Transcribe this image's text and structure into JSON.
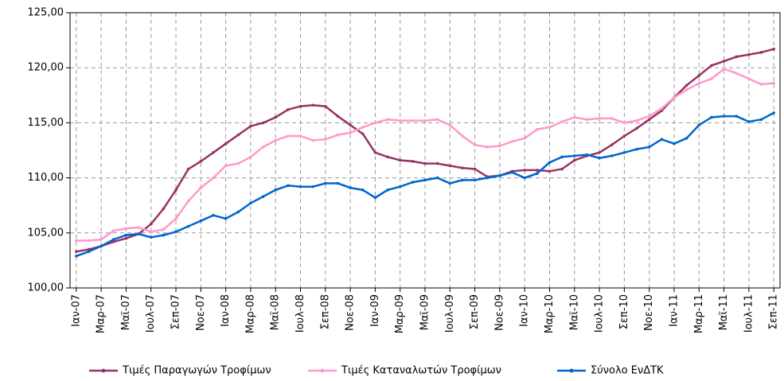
{
  "chart_data": {
    "type": "line",
    "categories": [
      "Ιαν-07",
      null,
      "Μαρ-07",
      null,
      "Μαϊ-07",
      null,
      "Ιουλ-07",
      null,
      "Σεπ-07",
      null,
      "Νοε-07",
      null,
      "Ιαν-08",
      null,
      "Μαρ-08",
      null,
      "Μαϊ-08",
      null,
      "Ιουλ-08",
      null,
      "Σεπ-08",
      null,
      "Νοε-08",
      null,
      "Ιαν-09",
      null,
      "Μαρ-09",
      null,
      "Μαϊ-09",
      null,
      "Ιουλ-09",
      null,
      "Σεπ-09",
      null,
      "Νοε-09",
      null,
      "Ιαν-10",
      null,
      "Μαρ-10",
      null,
      "Μαϊ-10",
      null,
      "Ιουλ-10",
      null,
      "Σεπ-10",
      null,
      "Νοε-10",
      null,
      "Ιαν-11",
      null,
      "Μαρ-11",
      null,
      "Μαϊ-11",
      null,
      "Ιουλ-11",
      null,
      "Σεπ-11"
    ],
    "series": [
      {
        "name": "Τιμές Παραγωγών Τροφίμων",
        "color": "#993366",
        "values": [
          103.3,
          103.5,
          103.8,
          104.2,
          104.5,
          104.9,
          105.8,
          107.2,
          108.9,
          110.8,
          111.5,
          112.3,
          113.1,
          113.9,
          114.7,
          115.0,
          115.5,
          116.2,
          116.5,
          116.6,
          116.5,
          115.6,
          114.8,
          114.0,
          112.3,
          111.9,
          111.6,
          111.5,
          111.3,
          111.3,
          111.1,
          110.9,
          110.8,
          110.1,
          110.2,
          110.6,
          110.7,
          110.7,
          110.6,
          110.8,
          111.6,
          112.0,
          112.3,
          113.0,
          113.8,
          114.5,
          115.3,
          116.1,
          117.3,
          118.4,
          119.3,
          120.2,
          120.6,
          121.0,
          121.2,
          121.4,
          121.7
        ]
      },
      {
        "name": "Τιμές Καταναλωτών Τροφίμων",
        "color": "#ff99cc",
        "values": [
          104.3,
          104.3,
          104.4,
          105.2,
          105.4,
          105.5,
          105.1,
          105.3,
          106.3,
          107.9,
          109.1,
          110.0,
          111.1,
          111.3,
          111.9,
          112.8,
          113.4,
          113.8,
          113.8,
          113.4,
          113.5,
          113.9,
          114.1,
          114.6,
          115.0,
          115.3,
          115.2,
          115.2,
          115.2,
          115.3,
          114.8,
          113.8,
          113.0,
          112.8,
          112.9,
          113.3,
          113.6,
          114.4,
          114.6,
          115.1,
          115.5,
          115.3,
          115.4,
          115.4,
          115.0,
          115.2,
          115.6,
          116.3,
          117.3,
          118.0,
          118.6,
          119.0,
          119.9,
          119.5,
          119.0,
          118.5,
          118.6
        ]
      },
      {
        "name": "Σύνολο ΕνΔΤΚ",
        "color": "#0066cc",
        "values": [
          102.9,
          103.3,
          103.8,
          104.4,
          104.8,
          104.9,
          104.6,
          104.8,
          105.1,
          105.6,
          106.1,
          106.6,
          106.3,
          106.9,
          107.7,
          108.3,
          108.9,
          109.3,
          109.2,
          109.2,
          109.5,
          109.5,
          109.1,
          108.9,
          108.2,
          108.9,
          109.2,
          109.6,
          109.8,
          110.0,
          109.5,
          109.8,
          109.8,
          110.0,
          110.2,
          110.5,
          110.0,
          110.4,
          111.4,
          111.9,
          112.0,
          112.1,
          111.8,
          112.0,
          112.3,
          112.6,
          112.8,
          113.5,
          113.1,
          113.6,
          114.8,
          115.5,
          115.6,
          115.6,
          115.1,
          115.3,
          115.9
        ]
      }
    ],
    "ylim": [
      100,
      125
    ],
    "yticks": [
      {
        "value": 100,
        "label": "100,00"
      },
      {
        "value": 105,
        "label": "105,00"
      },
      {
        "value": 110,
        "label": "110,00"
      },
      {
        "value": 115,
        "label": "115,00"
      },
      {
        "value": 120,
        "label": "120,00"
      },
      {
        "value": 125,
        "label": "125,00"
      }
    ],
    "grid": true,
    "legend": "bottom"
  }
}
